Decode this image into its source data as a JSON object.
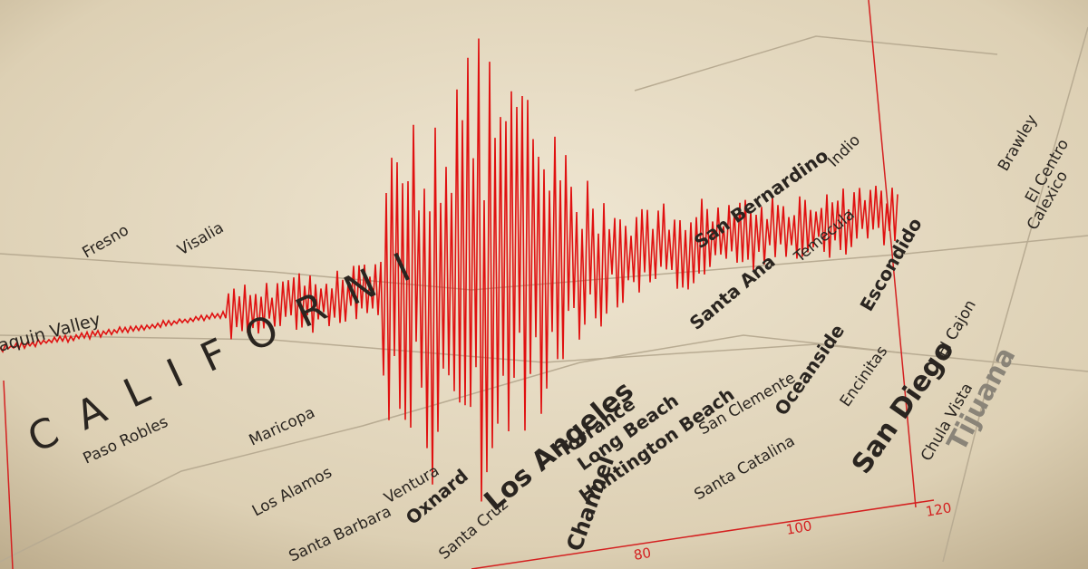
{
  "map_labels": [
    "Los Angeles",
    "San Diego",
    "Torrance",
    "Long Beach",
    "Huntington Beach",
    "San Clemente",
    "Santa Catalina",
    "Oceanside",
    "Encinitas",
    "Chula Vista",
    "Tijuana",
    "Escondido",
    "El Cajon",
    "Santa Ana",
    "San Bernardino",
    "Temecula",
    "Indio",
    "Brawley",
    "El Centro",
    "Calexico",
    "Paso Robles",
    "Maricopa",
    "Los Alamos",
    "Ventura",
    "Oxnard",
    "Santa Barbara",
    "Santa Cruz",
    "Fresno",
    "Visalia",
    "aquin Valley",
    "Channel",
    "CALIFORNI"
  ],
  "axis_labels": [
    "80",
    "100",
    "120"
  ]
}
